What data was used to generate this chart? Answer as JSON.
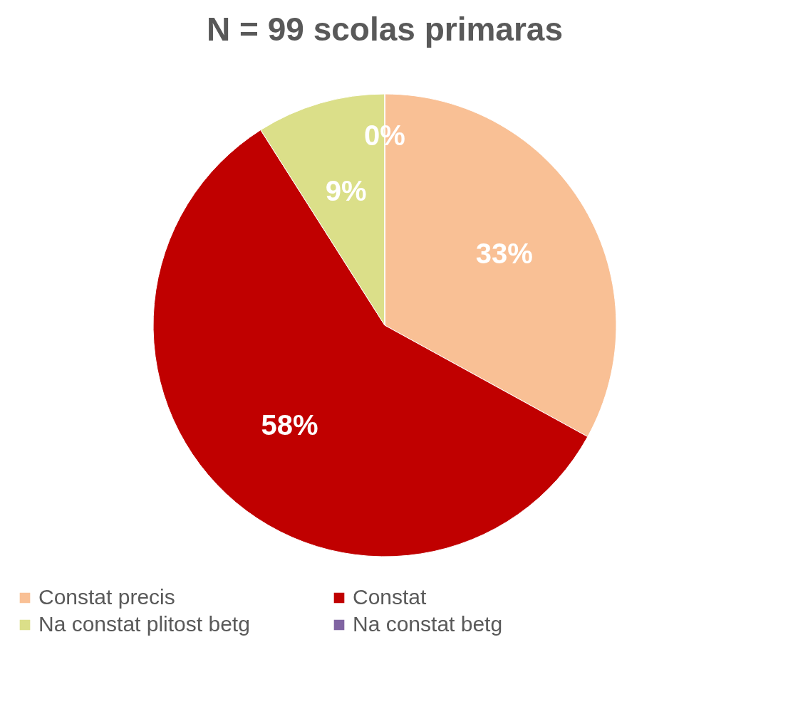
{
  "chart_data": {
    "type": "pie",
    "title": "N = 99 scolas primaras",
    "categories": [
      "Constat precis",
      "Constat",
      "Na constat plitost betg",
      "Na constat betg"
    ],
    "values": [
      33,
      58,
      9,
      0
    ],
    "colors": [
      "#f9c095",
      "#c00000",
      "#dbdf89",
      "#8064a2"
    ],
    "value_labels": [
      "33%",
      "58%",
      "9%",
      "0%"
    ],
    "legend": "bottom"
  }
}
